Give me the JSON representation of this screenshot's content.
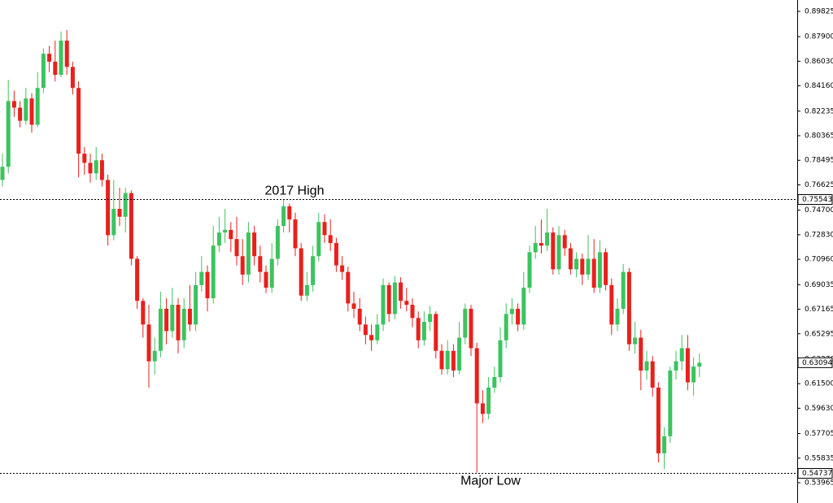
{
  "chart_data": {
    "type": "candlestick",
    "up_color": "#3cc35f",
    "down_color": "#e8201c",
    "ylim": [
      0.5242,
      0.9069
    ],
    "yticks": [
      {
        "value": 0.89825,
        "label": "0.89825"
      },
      {
        "value": 0.879,
        "label": "0.87900"
      },
      {
        "value": 0.8603,
        "label": "0.86030"
      },
      {
        "value": 0.8416,
        "label": "0.84160"
      },
      {
        "value": 0.82235,
        "label": "0.82235"
      },
      {
        "value": 0.80365,
        "label": "0.80365"
      },
      {
        "value": 0.78495,
        "label": "0.78495"
      },
      {
        "value": 0.76625,
        "label": "0.76625"
      },
      {
        "value": 0.747,
        "label": "0.74700"
      },
      {
        "value": 0.7283,
        "label": "0.72830"
      },
      {
        "value": 0.7096,
        "label": "0.70960"
      },
      {
        "value": 0.69035,
        "label": "0.69035"
      },
      {
        "value": 0.67165,
        "label": "0.67165"
      },
      {
        "value": 0.65295,
        "label": "0.65295"
      },
      {
        "value": 0.6337,
        "label": "0.63370"
      },
      {
        "value": 0.615,
        "label": "0.61500"
      },
      {
        "value": 0.5963,
        "label": "0.59630"
      },
      {
        "value": 0.57705,
        "label": "0.57705"
      },
      {
        "value": 0.55835,
        "label": "0.55835"
      },
      {
        "value": 0.53965,
        "label": "0.53965"
      }
    ],
    "levels": [
      {
        "value": 0.75543,
        "label": "0.75543",
        "annotation": "2017 High"
      },
      {
        "value": 0.54737,
        "label": "0.54737",
        "annotation": "Major Low"
      }
    ],
    "last_price": {
      "value": 0.63094,
      "label": "0.63094"
    },
    "open": [
      0.77,
      0.78,
      0.83,
      0.825,
      0.815,
      0.832,
      0.812,
      0.84,
      0.866,
      0.86,
      0.85,
      0.876,
      0.856,
      0.84,
      0.79,
      0.783,
      0.775,
      0.785,
      0.77,
      0.728,
      0.748,
      0.742,
      0.76,
      0.71,
      0.678,
      0.66,
      0.632,
      0.64,
      0.672,
      0.655,
      0.675,
      0.648,
      0.672,
      0.66,
      0.69,
      0.7,
      0.68,
      0.72,
      0.73,
      0.732,
      0.725,
      0.712,
      0.698,
      0.73,
      0.712,
      0.7,
      0.688,
      0.71,
      0.735,
      0.75,
      0.74,
      0.718,
      0.682,
      0.69,
      0.712,
      0.738,
      0.728,
      0.722,
      0.705,
      0.7,
      0.676,
      0.672,
      0.66,
      0.652,
      0.648,
      0.66,
      0.69,
      0.668,
      0.692,
      0.678,
      0.675,
      0.665,
      0.648,
      0.662,
      0.668,
      0.64,
      0.626,
      0.64,
      0.625,
      0.65,
      0.672,
      0.642,
      0.6,
      0.592,
      0.612,
      0.62,
      0.648,
      0.668,
      0.672,
      0.66,
      0.688,
      0.715,
      0.722,
      0.72,
      0.73,
      0.702,
      0.728,
      0.718,
      0.702,
      0.71,
      0.698,
      0.71,
      0.688,
      0.715,
      0.69,
      0.66,
      0.672,
      0.7,
      0.645,
      0.65,
      0.625,
      0.632,
      0.612,
      0.562,
      0.575,
      0.625,
      0.632,
      0.642,
      0.616,
      0.628
    ],
    "high": [
      0.79,
      0.846,
      0.838,
      0.83,
      0.84,
      0.836,
      0.852,
      0.87,
      0.872,
      0.876,
      0.883,
      0.884,
      0.86,
      0.845,
      0.795,
      0.79,
      0.795,
      0.79,
      0.774,
      0.77,
      0.764,
      0.764,
      0.762,
      0.712,
      0.68,
      0.675,
      0.65,
      0.685,
      0.68,
      0.688,
      0.68,
      0.68,
      0.69,
      0.7,
      0.712,
      0.705,
      0.735,
      0.742,
      0.748,
      0.738,
      0.742,
      0.725,
      0.738,
      0.735,
      0.72,
      0.705,
      0.722,
      0.74,
      0.75543,
      0.752,
      0.745,
      0.722,
      0.7,
      0.72,
      0.745,
      0.744,
      0.74,
      0.726,
      0.712,
      0.704,
      0.685,
      0.68,
      0.666,
      0.66,
      0.668,
      0.695,
      0.692,
      0.697,
      0.696,
      0.688,
      0.68,
      0.67,
      0.67,
      0.674,
      0.67,
      0.645,
      0.648,
      0.645,
      0.662,
      0.676,
      0.675,
      0.646,
      0.61,
      0.62,
      0.628,
      0.658,
      0.676,
      0.68,
      0.676,
      0.7,
      0.72,
      0.735,
      0.74,
      0.748,
      0.734,
      0.735,
      0.732,
      0.722,
      0.715,
      0.714,
      0.728,
      0.725,
      0.724,
      0.718,
      0.695,
      0.68,
      0.706,
      0.703,
      0.662,
      0.656,
      0.64,
      0.636,
      0.616,
      0.582,
      0.628,
      0.64,
      0.652,
      0.652,
      0.635,
      0.638
    ],
    "low": [
      0.765,
      0.775,
      0.818,
      0.81,
      0.812,
      0.806,
      0.81,
      0.836,
      0.852,
      0.845,
      0.848,
      0.85,
      0.835,
      0.772,
      0.774,
      0.768,
      0.77,
      0.765,
      0.72,
      0.724,
      0.735,
      0.73,
      0.705,
      0.672,
      0.65,
      0.612,
      0.622,
      0.635,
      0.645,
      0.65,
      0.638,
      0.642,
      0.655,
      0.655,
      0.685,
      0.67,
      0.676,
      0.715,
      0.722,
      0.715,
      0.705,
      0.69,
      0.692,
      0.705,
      0.692,
      0.684,
      0.684,
      0.705,
      0.73,
      0.73,
      0.712,
      0.678,
      0.678,
      0.685,
      0.708,
      0.722,
      0.716,
      0.7,
      0.694,
      0.67,
      0.665,
      0.655,
      0.645,
      0.64,
      0.645,
      0.655,
      0.662,
      0.664,
      0.672,
      0.67,
      0.658,
      0.642,
      0.644,
      0.655,
      0.634,
      0.622,
      0.622,
      0.62,
      0.622,
      0.645,
      0.636,
      0.54737,
      0.585,
      0.588,
      0.608,
      0.616,
      0.642,
      0.66,
      0.655,
      0.656,
      0.684,
      0.71,
      0.714,
      0.716,
      0.698,
      0.698,
      0.712,
      0.698,
      0.696,
      0.69,
      0.694,
      0.684,
      0.684,
      0.686,
      0.652,
      0.655,
      0.668,
      0.64,
      0.638,
      0.61,
      0.618,
      0.605,
      0.555,
      0.55,
      0.57,
      0.618,
      0.625,
      0.61,
      0.606,
      0.62
    ],
    "close": [
      0.78,
      0.83,
      0.825,
      0.815,
      0.832,
      0.812,
      0.84,
      0.866,
      0.86,
      0.85,
      0.876,
      0.856,
      0.84,
      0.79,
      0.783,
      0.775,
      0.785,
      0.77,
      0.728,
      0.748,
      0.742,
      0.76,
      0.71,
      0.678,
      0.66,
      0.632,
      0.64,
      0.672,
      0.655,
      0.675,
      0.648,
      0.672,
      0.66,
      0.69,
      0.7,
      0.68,
      0.72,
      0.73,
      0.732,
      0.725,
      0.712,
      0.698,
      0.73,
      0.712,
      0.7,
      0.688,
      0.71,
      0.735,
      0.75,
      0.74,
      0.718,
      0.682,
      0.69,
      0.712,
      0.738,
      0.728,
      0.722,
      0.705,
      0.7,
      0.676,
      0.672,
      0.66,
      0.652,
      0.648,
      0.66,
      0.69,
      0.668,
      0.692,
      0.678,
      0.675,
      0.665,
      0.648,
      0.662,
      0.668,
      0.64,
      0.626,
      0.64,
      0.625,
      0.65,
      0.672,
      0.642,
      0.6,
      0.592,
      0.612,
      0.62,
      0.648,
      0.668,
      0.672,
      0.66,
      0.688,
      0.715,
      0.722,
      0.72,
      0.73,
      0.702,
      0.728,
      0.718,
      0.702,
      0.71,
      0.698,
      0.71,
      0.688,
      0.715,
      0.69,
      0.66,
      0.672,
      0.7,
      0.645,
      0.65,
      0.625,
      0.632,
      0.612,
      0.562,
      0.575,
      0.625,
      0.632,
      0.642,
      0.616,
      0.628,
      0.63094
    ]
  }
}
